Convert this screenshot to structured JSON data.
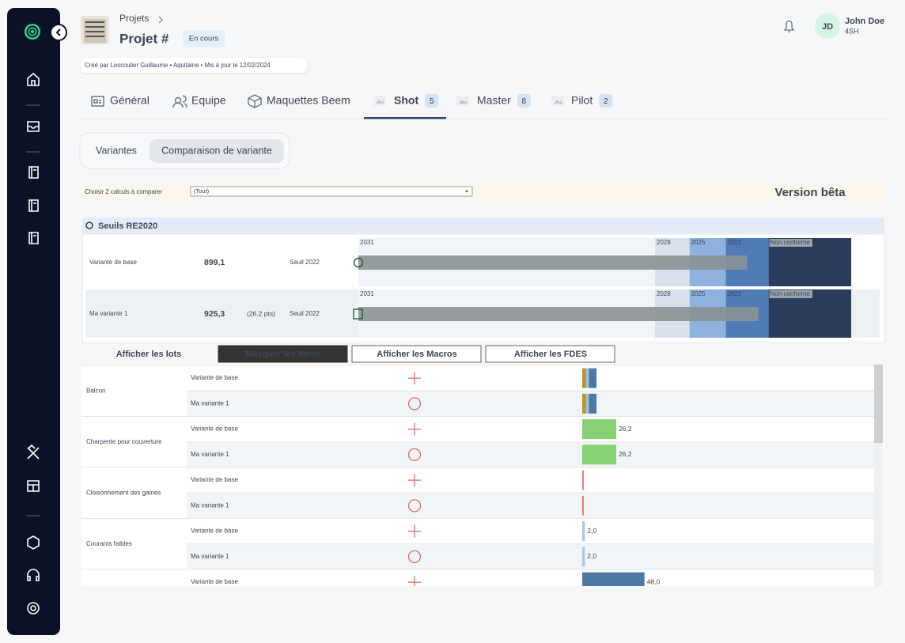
{
  "breadcrumb": {
    "parent": "Projets",
    "current": "Projet #",
    "status": "En cours",
    "meta": "Créé par Lescoulier Guillaume • Aquitaine • Mis à jour le 12/02/2024"
  },
  "user": {
    "initials": "JD",
    "name": "John Doe",
    "company": "4SH"
  },
  "tabs": [
    {
      "label": "Général"
    },
    {
      "label": "Equipe"
    },
    {
      "label": "Maquettes Beem"
    },
    {
      "label": "Shot",
      "count": 5
    },
    {
      "label": "Master",
      "count": 8
    },
    {
      "label": "Pilot",
      "count": 2
    }
  ],
  "active_tab": 3,
  "subtabs": {
    "items": [
      "Variantes",
      "Comparaison de variante"
    ],
    "active": 1
  },
  "filter": {
    "label": "Choisir 2 calculs à comparer",
    "value": "(Tout)",
    "badge": "Version bêta"
  },
  "thresholds": {
    "title": "Seuils RE2020",
    "xlim": [
      0,
      1140
    ],
    "zones": [
      {
        "label": "2031",
        "start": 0,
        "color": "#f1f5f9"
      },
      {
        "label": "2028",
        "start": 686,
        "color": "#d9e2ec"
      },
      {
        "label": "2025",
        "start": 766,
        "color": "#8fb1de"
      },
      {
        "label": "2022",
        "start": 850,
        "color": "#4f7bb7"
      },
      {
        "label": "Non conforme",
        "start": 949,
        "color": "#293c5b"
      }
    ],
    "rows": [
      {
        "name": "Variante de base",
        "value": 899.1,
        "value_label": "899,1",
        "seuil": "Seuil 2022"
      },
      {
        "name": "Ma variante 1",
        "value": 925.3,
        "value_label": "925,3",
        "delta": "(26.2 pts)",
        "seuil": "Seuil 2022"
      }
    ]
  },
  "buttons": {
    "items": [
      "Afficher les lots",
      "Masquer les items",
      "Afficher les Macros",
      "Afficher les FDES"
    ],
    "active": 1
  },
  "lots_xlim": [
    0,
    222
  ],
  "lots": [
    {
      "name": "Balcon",
      "variants": [
        {
          "name": "Variante de base",
          "segments": [
            {
              "color": "#b8952a",
              "value": 3
            },
            {
              "color": "#9cc3e6",
              "value": 2
            },
            {
              "color": "#4e79a7",
              "value": 6
            }
          ]
        },
        {
          "name": "Ma variante 1",
          "segments": [
            {
              "color": "#b8952a",
              "value": 3
            },
            {
              "color": "#9cc3e6",
              "value": 2
            },
            {
              "color": "#4e79a7",
              "value": 6
            }
          ]
        }
      ]
    },
    {
      "name": "Charpente pour couverture",
      "variants": [
        {
          "name": "Variante de base",
          "segments": [
            {
              "color": "#86d173",
              "value": 26.2
            }
          ],
          "value_label": "26,2"
        },
        {
          "name": "Ma variante 1",
          "segments": [
            {
              "color": "#86d173",
              "value": 26.2
            }
          ],
          "value_label": "26,2"
        }
      ]
    },
    {
      "name": "Cloisonnement des gaines",
      "variants": [
        {
          "name": "Variante de base",
          "segments": [
            {
              "color": "#e8826a",
              "value": 1.2
            }
          ]
        },
        {
          "name": "Ma variante 1",
          "segments": [
            {
              "color": "#e8826a",
              "value": 1.2
            }
          ]
        }
      ]
    },
    {
      "name": "Courants faibles",
      "variants": [
        {
          "name": "Variante de base",
          "segments": [
            {
              "color": "#a7c8ea",
              "value": 2.0
            }
          ],
          "value_label": "2,0"
        },
        {
          "name": "Ma variante 1",
          "segments": [
            {
              "color": "#a7c8ea",
              "value": 2.0
            }
          ],
          "value_label": "2,0"
        }
      ]
    },
    {
      "name": null,
      "variants": [
        {
          "name": "Variante de base",
          "segments": [
            {
              "color": "#4e79a7",
              "value": 48.0
            }
          ],
          "value_label": "48,0"
        }
      ]
    }
  ]
}
